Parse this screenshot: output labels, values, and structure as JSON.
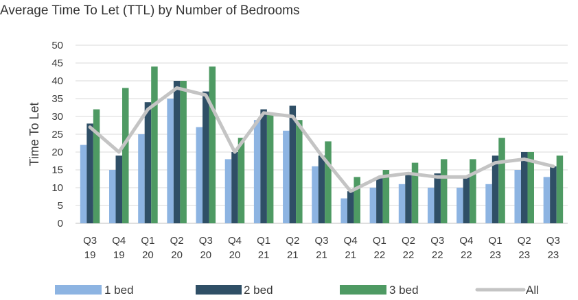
{
  "chart_data": {
    "type": "bar",
    "title": "Average Time To Let (TTL) by Number of Bedrooms",
    "xlabel": "",
    "ylabel": "Time To Let",
    "ylim": [
      0,
      50
    ],
    "yticks": [
      0,
      5,
      10,
      15,
      20,
      25,
      30,
      35,
      40,
      45,
      50
    ],
    "grid": true,
    "legend_position": "bottom",
    "categories": [
      [
        "Q3",
        "19"
      ],
      [
        "Q4",
        "19"
      ],
      [
        "Q1",
        "20"
      ],
      [
        "Q2",
        "20"
      ],
      [
        "Q3",
        "20"
      ],
      [
        "Q4",
        "20"
      ],
      [
        "Q1",
        "21"
      ],
      [
        "Q2",
        "21"
      ],
      [
        "Q3",
        "21"
      ],
      [
        "Q4",
        "21"
      ],
      [
        "Q1",
        "22"
      ],
      [
        "Q2",
        "22"
      ],
      [
        "Q3",
        "22"
      ],
      [
        "Q4",
        "22"
      ],
      [
        "Q1",
        "23"
      ],
      [
        "Q2",
        "23"
      ],
      [
        "Q3",
        "23"
      ]
    ],
    "series": [
      {
        "name": "1 bed",
        "kind": "bar",
        "color": "#8db4e2",
        "values": [
          22,
          15,
          25,
          35,
          27,
          18,
          29,
          26,
          16,
          7,
          10,
          11,
          10,
          10,
          11,
          15,
          13
        ]
      },
      {
        "name": "2 bed",
        "kind": "bar",
        "color": "#2f4f66",
        "values": [
          28,
          19,
          34,
          40,
          37,
          20,
          32,
          33,
          19,
          9,
          13,
          14,
          14,
          13,
          19,
          20,
          16
        ]
      },
      {
        "name": "3 bed",
        "kind": "bar",
        "color": "#4e9a63",
        "values": [
          32,
          38,
          44,
          40,
          44,
          24,
          31,
          29,
          23,
          13,
          15,
          17,
          18,
          18,
          24,
          20,
          19
        ]
      },
      {
        "name": "All",
        "kind": "line",
        "color": "#c4c4c4",
        "values": [
          27,
          20,
          32,
          38,
          36,
          20,
          31,
          30,
          19,
          9,
          13,
          14,
          13,
          13,
          17,
          18,
          16
        ]
      }
    ]
  }
}
